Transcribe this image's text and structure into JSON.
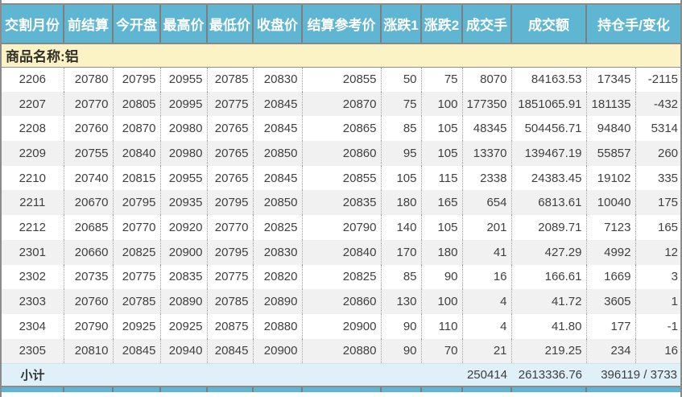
{
  "table": {
    "headers": [
      "交割月份",
      "前结算",
      "今开盘",
      "最高价",
      "最低价",
      "收盘价",
      "结算参考价",
      "涨跌1",
      "涨跌2",
      "成交手",
      "成交额",
      "持仓手/变化"
    ],
    "product_label": "商品名称:铝",
    "rows": [
      [
        "2206",
        "20780",
        "20795",
        "20955",
        "20785",
        "20830",
        "20855",
        "50",
        "75",
        "8070",
        "84163.53",
        "17345",
        "-2115"
      ],
      [
        "2207",
        "20770",
        "20805",
        "20995",
        "20775",
        "20845",
        "20870",
        "75",
        "100",
        "177350",
        "1851065.91",
        "181135",
        "-432"
      ],
      [
        "2208",
        "20760",
        "20870",
        "20980",
        "20765",
        "20845",
        "20865",
        "85",
        "105",
        "48345",
        "504456.71",
        "94840",
        "5314"
      ],
      [
        "2209",
        "20755",
        "20840",
        "20980",
        "20765",
        "20850",
        "20860",
        "95",
        "105",
        "13370",
        "139467.19",
        "55857",
        "260"
      ],
      [
        "2210",
        "20740",
        "20815",
        "20955",
        "20765",
        "20845",
        "20855",
        "105",
        "115",
        "2338",
        "24383.45",
        "19102",
        "335"
      ],
      [
        "2211",
        "20670",
        "20795",
        "20935",
        "20795",
        "20850",
        "20835",
        "180",
        "165",
        "654",
        "6813.61",
        "10040",
        "175"
      ],
      [
        "2212",
        "20685",
        "20770",
        "20920",
        "20770",
        "20825",
        "20790",
        "140",
        "105",
        "201",
        "2089.71",
        "7123",
        "165"
      ],
      [
        "2301",
        "20660",
        "20825",
        "20900",
        "20795",
        "20830",
        "20840",
        "170",
        "180",
        "41",
        "427.29",
        "4992",
        "12"
      ],
      [
        "2302",
        "20735",
        "20775",
        "20835",
        "20775",
        "20820",
        "20825",
        "85",
        "90",
        "16",
        "166.61",
        "1669",
        "3"
      ],
      [
        "2303",
        "20760",
        "20785",
        "20890",
        "20785",
        "20890",
        "20860",
        "130",
        "100",
        "4",
        "41.72",
        "3605",
        "1"
      ],
      [
        "2304",
        "20790",
        "20925",
        "20925",
        "20875",
        "20880",
        "20900",
        "90",
        "110",
        "4",
        "41.80",
        "177",
        "-1"
      ],
      [
        "2305",
        "20810",
        "20845",
        "20940",
        "20845",
        "20900",
        "20880",
        "90",
        "70",
        "21",
        "219.25",
        "234",
        "16"
      ]
    ],
    "subtotal": {
      "label": "小计",
      "volume": "250414",
      "turnover": "2613336.76",
      "open_interest_change": "396119 / 3733"
    }
  },
  "colors": {
    "header_bg": "#5fb6d2",
    "product_row_bg": "#fbf3c5",
    "row_alt_bg": "#f1f1f1",
    "subtotal_bg": "#dff0f8",
    "border_gray": "#8b8b8b"
  }
}
